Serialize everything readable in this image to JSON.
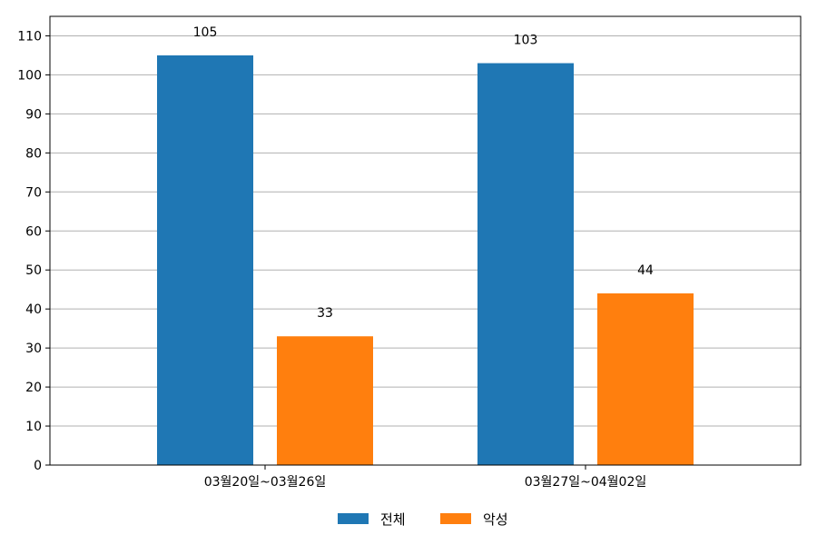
{
  "chart_data": {
    "type": "bar",
    "categories": [
      "03월20일~03월26일",
      "03월27일~04월02일"
    ],
    "series": [
      {
        "name": "전체",
        "color": "#1f77b4",
        "values": [
          105,
          103
        ]
      },
      {
        "name": "악성",
        "color": "#ff7f0e",
        "values": [
          33,
          44
        ]
      }
    ],
    "ylim": [
      0,
      115
    ],
    "yticks": [
      0,
      10,
      20,
      30,
      40,
      50,
      60,
      70,
      80,
      90,
      100,
      110
    ],
    "grid": "horizontal",
    "legend": "bottom-center",
    "data_labels": true
  }
}
